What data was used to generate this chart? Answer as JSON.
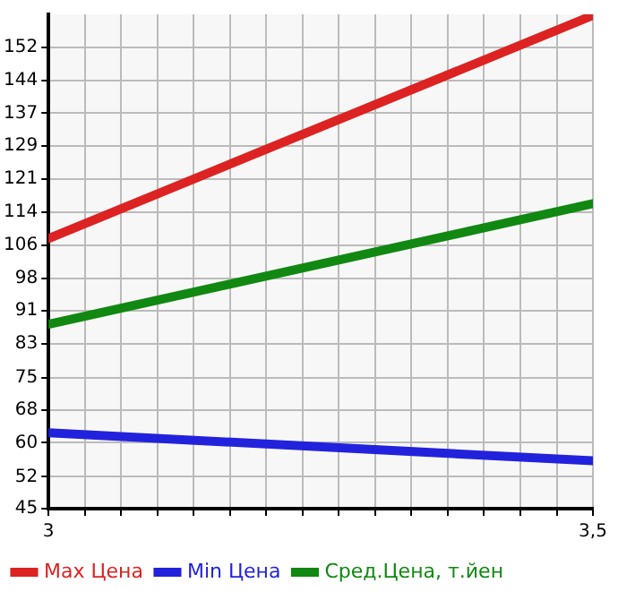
{
  "chart_data": {
    "type": "line",
    "x": [
      3,
      3.5
    ],
    "series": [
      {
        "name": "Max Цена",
        "color": "#dd2222",
        "values": [
          107.7,
          159.5
        ]
      },
      {
        "name": "Min Цена",
        "color": "#2222dd",
        "values": [
          62.6,
          56.1
        ]
      },
      {
        "name": "Сред.Цена, т.йен",
        "color": "#118811",
        "values": [
          87.8,
          115.8
        ]
      }
    ],
    "xlim": [
      3,
      3.5
    ],
    "xticks": [
      3,
      {
        "value": 3.0333,
        "label": null
      },
      {
        "value": 3.0667,
        "label": null
      },
      {
        "value": 3.1,
        "label": null
      },
      {
        "value": 3.1333,
        "label": null
      },
      {
        "value": 3.1667,
        "label": null
      },
      {
        "value": 3.2,
        "label": null
      },
      {
        "value": 3.2333,
        "label": null
      },
      {
        "value": 3.2667,
        "label": null
      },
      {
        "value": 3.3,
        "label": null
      },
      {
        "value": 3.3333,
        "label": null
      },
      {
        "value": 3.3667,
        "label": null
      },
      {
        "value": 3.4,
        "label": null
      },
      {
        "value": 3.4333,
        "label": null
      },
      {
        "value": 3.4667,
        "label": null
      },
      {
        "value": 3.5,
        "label": "3,5"
      }
    ],
    "ylim": [
      45,
      159.75
    ],
    "yticks": [
      45,
      {
        "value": 52.4,
        "label": "52"
      },
      {
        "value": 60.3,
        "label": "60"
      },
      {
        "value": 67.95,
        "label": "68"
      },
      {
        "value": 75.4,
        "label": "75"
      },
      {
        "value": 83.25,
        "label": "83"
      },
      {
        "value": 90.9,
        "label": "91"
      },
      {
        "value": 98.4,
        "label": "98"
      },
      {
        "value": 106.2,
        "label": "106"
      },
      {
        "value": 113.85,
        "label": "114"
      },
      {
        "value": 121.5,
        "label": "121"
      },
      {
        "value": 129.15,
        "label": "129"
      },
      {
        "value": 136.8,
        "label": "137"
      },
      {
        "value": 144.45,
        "label": "144"
      },
      {
        "value": 152.1,
        "label": "152"
      }
    ],
    "grid": true,
    "legend": "bottom",
    "marker": "none",
    "line_style": "solid"
  }
}
